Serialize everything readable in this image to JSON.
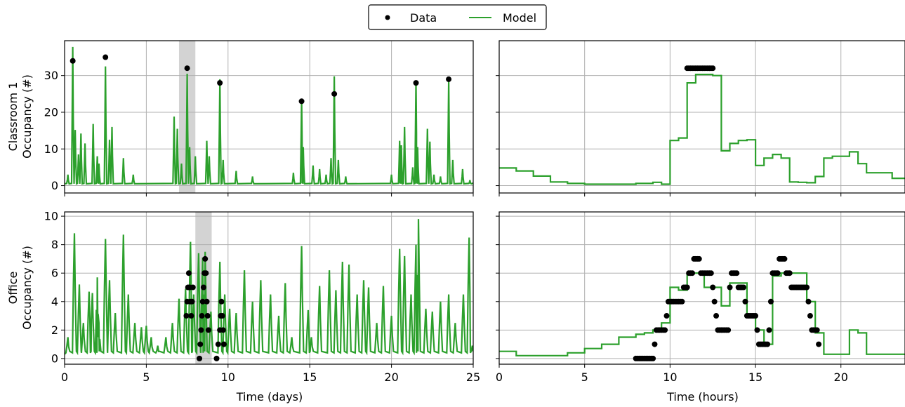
{
  "legend": {
    "data_label": "Data",
    "model_label": "Model",
    "placement": "top-center"
  },
  "colors": {
    "model": "#2ca02c",
    "data": "#000000",
    "shade": "#d3d3d3",
    "grid": "#b0b0b0"
  },
  "chart_data": [
    {
      "id": "classroom-days",
      "type": "line",
      "ylabel_lines": [
        "Classroom 1",
        "Occupancy (#)"
      ],
      "xlabel": "",
      "xlim": [
        0,
        25
      ],
      "ylim": [
        -2,
        39.5
      ],
      "xticks": [
        0,
        5,
        10,
        15,
        20,
        25
      ],
      "yticks": [
        0,
        10,
        20,
        30
      ],
      "grid": true,
      "shaded_span": [
        7,
        8
      ],
      "data_points": [
        [
          0.5,
          34
        ],
        [
          2.5,
          35
        ],
        [
          7.5,
          32
        ],
        [
          9.5,
          28
        ],
        [
          14.5,
          23
        ],
        [
          16.5,
          25
        ],
        [
          21.5,
          28
        ],
        [
          23.5,
          29
        ]
      ],
      "model_peaks": [
        [
          0.5,
          37.8
        ],
        [
          2.5,
          32.5
        ],
        [
          7.5,
          30.5
        ],
        [
          9.5,
          29
        ],
        [
          14.5,
          23.5
        ],
        [
          16.5,
          29.8
        ],
        [
          21.5,
          28.5
        ],
        [
          23.5,
          28.7
        ]
      ],
      "model_minor_peaks": [
        [
          0.2,
          3
        ],
        [
          0.65,
          15.2
        ],
        [
          0.85,
          8.5
        ],
        [
          1.0,
          14.2
        ],
        [
          1.25,
          11.5
        ],
        [
          1.75,
          16.8
        ],
        [
          2.0,
          8
        ],
        [
          2.1,
          6
        ],
        [
          2.75,
          12.5
        ],
        [
          2.9,
          16
        ],
        [
          3.6,
          7.5
        ],
        [
          4.2,
          3
        ],
        [
          6.7,
          18.8
        ],
        [
          6.9,
          15.5
        ],
        [
          7.15,
          6
        ],
        [
          7.65,
          10.5
        ],
        [
          8.0,
          8
        ],
        [
          8.7,
          12.2
        ],
        [
          8.85,
          8
        ],
        [
          9.7,
          7
        ],
        [
          10.5,
          4
        ],
        [
          11.5,
          2.5
        ],
        [
          14.0,
          3.5
        ],
        [
          14.6,
          10.5
        ],
        [
          15.2,
          5.5
        ],
        [
          15.6,
          4.5
        ],
        [
          16.0,
          3
        ],
        [
          16.3,
          7.5
        ],
        [
          16.75,
          7
        ],
        [
          17.2,
          2.5
        ],
        [
          20.0,
          3
        ],
        [
          20.5,
          12.2
        ],
        [
          20.6,
          11
        ],
        [
          20.8,
          16
        ],
        [
          21.3,
          5
        ],
        [
          21.6,
          10.5
        ],
        [
          22.2,
          15.5
        ],
        [
          22.35,
          12
        ],
        [
          22.6,
          3
        ],
        [
          23.0,
          2.5
        ],
        [
          23.75,
          7
        ],
        [
          24.35,
          4.5
        ],
        [
          24.8,
          1.5
        ]
      ]
    },
    {
      "id": "classroom-hours",
      "type": "line",
      "xlim": [
        0,
        23.75
      ],
      "ylim": [
        -2,
        39.5
      ],
      "xticks": [
        0,
        5,
        10,
        15,
        20
      ],
      "yticks": [
        0,
        10,
        20,
        30
      ],
      "show_tick_labels": false,
      "grid": true,
      "model_steps": [
        [
          0,
          4.8
        ],
        [
          1,
          4.0
        ],
        [
          2,
          2.6
        ],
        [
          3,
          1.0
        ],
        [
          4,
          0.6
        ],
        [
          5,
          0.4
        ],
        [
          6,
          0.4
        ],
        [
          7,
          0.4
        ],
        [
          8,
          0.6
        ],
        [
          9,
          0.9
        ],
        [
          9.5,
          0.4
        ],
        [
          10,
          12.3
        ],
        [
          10.5,
          13.0
        ],
        [
          11,
          28
        ],
        [
          11.5,
          30.3
        ],
        [
          12,
          30.3
        ],
        [
          12.5,
          30.0
        ],
        [
          13,
          9.5
        ],
        [
          13.5,
          11.5
        ],
        [
          14,
          12.3
        ],
        [
          14.5,
          12.5
        ],
        [
          15,
          5.5
        ],
        [
          15.5,
          7.5
        ],
        [
          16,
          8.5
        ],
        [
          16.5,
          7.5
        ],
        [
          17,
          1.0
        ],
        [
          17.5,
          0.9
        ],
        [
          18,
          0.8
        ],
        [
          18.5,
          2.5
        ],
        [
          19,
          7.5
        ],
        [
          19.5,
          8.0
        ],
        [
          20,
          8.0
        ],
        [
          20.5,
          9.2
        ],
        [
          21,
          6.0
        ],
        [
          21.5,
          3.5
        ],
        [
          22.5,
          3.5
        ],
        [
          23,
          2.0
        ],
        [
          23.75,
          2.0
        ]
      ],
      "data_points": [
        [
          11.0,
          32
        ],
        [
          11.1,
          32
        ],
        [
          11.2,
          32
        ],
        [
          11.3,
          32
        ],
        [
          11.4,
          32
        ],
        [
          11.5,
          32
        ],
        [
          11.6,
          32
        ],
        [
          11.7,
          32
        ],
        [
          11.8,
          32
        ],
        [
          11.9,
          32
        ],
        [
          12.0,
          32
        ],
        [
          12.1,
          32
        ],
        [
          12.2,
          32
        ],
        [
          12.3,
          32
        ],
        [
          12.4,
          32
        ],
        [
          12.5,
          32
        ]
      ]
    },
    {
      "id": "office-days",
      "type": "line",
      "ylabel_lines": [
        "Office",
        "Occupancy (#)"
      ],
      "xlabel": "Time (days)",
      "xlim": [
        0,
        25
      ],
      "ylim": [
        -0.4,
        10.3
      ],
      "xticks": [
        0,
        5,
        10,
        15,
        20,
        25
      ],
      "yticks": [
        0,
        2,
        4,
        6,
        8,
        10
      ],
      "grid": true,
      "shaded_span": [
        8,
        9
      ],
      "model_peaks": [
        [
          0.2,
          1.5
        ],
        [
          0.6,
          8.8
        ],
        [
          0.9,
          5.2
        ],
        [
          1.15,
          2.5
        ],
        [
          1.5,
          4.7
        ],
        [
          1.7,
          4.6
        ],
        [
          2.0,
          5.7
        ],
        [
          2.1,
          2.5
        ],
        [
          2.5,
          8.4
        ],
        [
          2.75,
          5.5
        ],
        [
          3.1,
          3.2
        ],
        [
          3.6,
          8.7
        ],
        [
          3.9,
          4.5
        ],
        [
          4.3,
          2.5
        ],
        [
          4.7,
          2.2
        ],
        [
          5.0,
          2.3
        ],
        [
          5.3,
          1.5
        ],
        [
          5.7,
          0.9
        ],
        [
          6.2,
          1.5
        ],
        [
          6.6,
          2.5
        ],
        [
          7.0,
          4.2
        ],
        [
          7.4,
          4.9
        ],
        [
          7.7,
          8.2
        ],
        [
          7.9,
          4.5
        ],
        [
          8.2,
          7.4
        ],
        [
          8.45,
          7.1
        ],
        [
          8.6,
          7.5
        ],
        [
          8.95,
          3.3
        ],
        [
          9.5,
          6.8
        ],
        [
          9.8,
          4.5
        ],
        [
          10.1,
          3.5
        ],
        [
          10.5,
          3.2
        ],
        [
          11.0,
          6.2
        ],
        [
          11.5,
          4.0
        ],
        [
          12.0,
          5.5
        ],
        [
          12.6,
          4.5
        ],
        [
          13.1,
          3.0
        ],
        [
          13.5,
          5.3
        ],
        [
          13.9,
          1.5
        ],
        [
          14.5,
          7.9
        ],
        [
          14.9,
          3.4
        ],
        [
          15.1,
          1.5
        ],
        [
          15.6,
          5.1
        ],
        [
          16.2,
          6.2
        ],
        [
          16.6,
          4.8
        ],
        [
          17.0,
          6.8
        ],
        [
          17.4,
          6.6
        ],
        [
          17.9,
          4.5
        ],
        [
          18.3,
          5.5
        ],
        [
          18.6,
          5.0
        ],
        [
          19.1,
          2.5
        ],
        [
          19.5,
          5.1
        ],
        [
          20.0,
          3.0
        ],
        [
          20.5,
          7.7
        ],
        [
          20.8,
          7.2
        ],
        [
          21.2,
          4.5
        ],
        [
          21.5,
          8.0
        ],
        [
          21.65,
          9.8
        ],
        [
          22.1,
          3.5
        ],
        [
          22.5,
          3.3
        ],
        [
          23.0,
          4.0
        ],
        [
          23.5,
          4.5
        ],
        [
          23.9,
          2.5
        ],
        [
          24.4,
          4.5
        ],
        [
          24.75,
          8.5
        ],
        [
          24.95,
          0.9
        ]
      ],
      "data_points": [
        [
          7.45,
          3
        ],
        [
          7.5,
          4
        ],
        [
          7.55,
          5
        ],
        [
          7.6,
          6
        ],
        [
          7.65,
          5
        ],
        [
          7.7,
          4
        ],
        [
          7.75,
          3
        ],
        [
          7.8,
          4
        ],
        [
          7.85,
          5
        ],
        [
          8.25,
          0
        ],
        [
          8.3,
          1
        ],
        [
          8.35,
          2
        ],
        [
          8.4,
          3
        ],
        [
          8.45,
          4
        ],
        [
          8.5,
          5
        ],
        [
          8.55,
          6
        ],
        [
          8.6,
          7
        ],
        [
          8.65,
          6
        ],
        [
          8.7,
          4
        ],
        [
          8.75,
          3
        ],
        [
          8.8,
          2
        ],
        [
          9.3,
          0
        ],
        [
          9.4,
          1
        ],
        [
          9.5,
          2
        ],
        [
          9.55,
          3
        ],
        [
          9.6,
          4
        ],
        [
          9.65,
          3
        ],
        [
          9.7,
          2
        ],
        [
          9.75,
          1
        ]
      ]
    },
    {
      "id": "office-hours",
      "type": "line",
      "xlabel": "Time (hours)",
      "xlim": [
        0,
        23.75
      ],
      "ylim": [
        -0.4,
        10.3
      ],
      "xticks": [
        0,
        5,
        10,
        15,
        20
      ],
      "yticks": [
        0,
        2,
        4,
        6,
        8,
        10
      ],
      "show_y_tick_labels": false,
      "grid": true,
      "model_steps": [
        [
          0,
          0.5
        ],
        [
          1,
          0.2
        ],
        [
          2,
          0.2
        ],
        [
          3,
          0.2
        ],
        [
          4,
          0.4
        ],
        [
          5,
          0.7
        ],
        [
          6,
          1.0
        ],
        [
          7,
          1.5
        ],
        [
          8,
          1.7
        ],
        [
          8.5,
          1.8
        ],
        [
          9,
          2.0
        ],
        [
          9.5,
          2.5
        ],
        [
          10,
          5.0
        ],
        [
          10.5,
          4.8
        ],
        [
          11,
          6.0
        ],
        [
          11.5,
          6.0
        ],
        [
          12,
          5.0
        ],
        [
          12.5,
          5.0
        ],
        [
          13,
          3.7
        ],
        [
          13.5,
          5.3
        ],
        [
          14,
          5.3
        ],
        [
          14.5,
          3.0
        ],
        [
          15,
          2.0
        ],
        [
          15.5,
          1.0
        ],
        [
          16,
          5.8
        ],
        [
          16.5,
          6.0
        ],
        [
          17,
          6.0
        ],
        [
          17.5,
          6.0
        ],
        [
          18,
          4.0
        ],
        [
          18.5,
          1.8
        ],
        [
          19,
          0.3
        ],
        [
          20,
          0.3
        ],
        [
          20.5,
          2.0
        ],
        [
          21,
          1.8
        ],
        [
          21.5,
          0.3
        ],
        [
          23,
          0.3
        ],
        [
          23.75,
          0.3
        ]
      ],
      "data_points": [
        [
          8.0,
          0
        ],
        [
          8.1,
          0
        ],
        [
          8.2,
          0
        ],
        [
          8.3,
          0
        ],
        [
          8.4,
          0
        ],
        [
          8.5,
          0
        ],
        [
          8.6,
          0
        ],
        [
          8.7,
          0
        ],
        [
          8.8,
          0
        ],
        [
          8.9,
          0
        ],
        [
          9.0,
          0
        ],
        [
          9.1,
          1
        ],
        [
          9.2,
          2
        ],
        [
          9.3,
          2
        ],
        [
          9.4,
          2
        ],
        [
          9.5,
          2
        ],
        [
          9.6,
          2
        ],
        [
          9.7,
          2
        ],
        [
          9.8,
          3
        ],
        [
          9.9,
          4
        ],
        [
          10.0,
          4
        ],
        [
          10.1,
          4
        ],
        [
          10.2,
          4
        ],
        [
          10.3,
          4
        ],
        [
          10.4,
          4
        ],
        [
          10.5,
          4
        ],
        [
          10.6,
          4
        ],
        [
          10.7,
          4
        ],
        [
          10.8,
          5
        ],
        [
          10.9,
          5
        ],
        [
          11.0,
          5
        ],
        [
          11.1,
          6
        ],
        [
          11.2,
          6
        ],
        [
          11.3,
          6
        ],
        [
          11.4,
          7
        ],
        [
          11.5,
          7
        ],
        [
          11.6,
          7
        ],
        [
          11.7,
          7
        ],
        [
          11.8,
          6
        ],
        [
          11.9,
          6
        ],
        [
          12.0,
          6
        ],
        [
          12.1,
          6
        ],
        [
          12.2,
          6
        ],
        [
          12.3,
          6
        ],
        [
          12.4,
          6
        ],
        [
          12.5,
          5
        ],
        [
          12.6,
          4
        ],
        [
          12.7,
          3
        ],
        [
          12.8,
          2
        ],
        [
          12.9,
          2
        ],
        [
          13.0,
          2
        ],
        [
          13.1,
          2
        ],
        [
          13.2,
          2
        ],
        [
          13.3,
          2
        ],
        [
          13.4,
          2
        ],
        [
          13.5,
          5
        ],
        [
          13.6,
          6
        ],
        [
          13.7,
          6
        ],
        [
          13.8,
          6
        ],
        [
          13.9,
          6
        ],
        [
          14.0,
          5
        ],
        [
          14.1,
          5
        ],
        [
          14.2,
          5
        ],
        [
          14.3,
          5
        ],
        [
          14.4,
          4
        ],
        [
          14.5,
          3
        ],
        [
          14.6,
          3
        ],
        [
          14.7,
          3
        ],
        [
          14.8,
          3
        ],
        [
          14.9,
          3
        ],
        [
          15.0,
          3
        ],
        [
          15.1,
          2
        ],
        [
          15.2,
          1
        ],
        [
          15.3,
          1
        ],
        [
          15.4,
          1
        ],
        [
          15.5,
          1
        ],
        [
          15.6,
          1
        ],
        [
          15.7,
          1
        ],
        [
          15.8,
          2
        ],
        [
          15.9,
          4
        ],
        [
          16.0,
          6
        ],
        [
          16.1,
          6
        ],
        [
          16.2,
          6
        ],
        [
          16.3,
          6
        ],
        [
          16.4,
          7
        ],
        [
          16.5,
          7
        ],
        [
          16.6,
          7
        ],
        [
          16.7,
          7
        ],
        [
          16.8,
          6
        ],
        [
          16.9,
          6
        ],
        [
          17.0,
          6
        ],
        [
          17.1,
          5
        ],
        [
          17.2,
          5
        ],
        [
          17.3,
          5
        ],
        [
          17.4,
          5
        ],
        [
          17.5,
          5
        ],
        [
          17.6,
          5
        ],
        [
          17.7,
          5
        ],
        [
          17.8,
          5
        ],
        [
          17.9,
          5
        ],
        [
          18.0,
          5
        ],
        [
          18.1,
          4
        ],
        [
          18.2,
          3
        ],
        [
          18.3,
          2
        ],
        [
          18.4,
          2
        ],
        [
          18.5,
          2
        ],
        [
          18.6,
          2
        ],
        [
          18.7,
          1
        ]
      ]
    }
  ]
}
